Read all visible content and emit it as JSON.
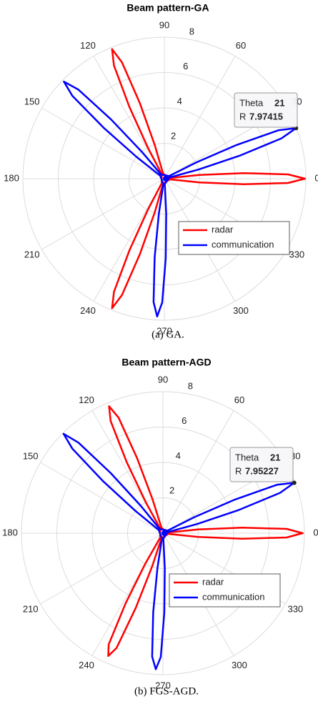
{
  "chart_data": [
    {
      "type": "polar",
      "title": "Beam pattern-GA",
      "caption": "(a) GA.",
      "rlim": [
        0,
        8
      ],
      "rticks": [
        2,
        4,
        6,
        8
      ],
      "thetaticks": [
        0,
        30,
        60,
        90,
        120,
        150,
        180,
        210,
        240,
        270,
        300,
        330
      ],
      "grid": true,
      "legend": "southeast",
      "series": [
        {
          "name": "radar",
          "color": "#ff0000",
          "theta": [
            352,
            354,
            356,
            358,
            0,
            2,
            4,
            6,
            8,
            104,
            106,
            108,
            110,
            112,
            114,
            116,
            118,
            120,
            240,
            242,
            244,
            246,
            248,
            250,
            252,
            254,
            256
          ],
          "values": [
            0.3,
            2,
            4.5,
            7,
            7.95,
            7,
            4.5,
            2,
            0.3,
            0.3,
            2,
            4.5,
            7,
            7.9,
            7,
            4.5,
            2,
            0.3,
            0.3,
            2,
            4.5,
            7,
            7.9,
            7,
            4.5,
            2,
            0.3
          ]
        },
        {
          "name": "communication",
          "color": "#0000ff",
          "theta": [
            13,
            15,
            17,
            19,
            21,
            23,
            25,
            27,
            29,
            128,
            130,
            132,
            134,
            136,
            138,
            140,
            142,
            144,
            259,
            261,
            263,
            265,
            267,
            269,
            271,
            273,
            275
          ],
          "values": [
            0.3,
            2,
            4.5,
            7,
            7.97415,
            7,
            4.5,
            2,
            0.3,
            0.3,
            2,
            4.5,
            7,
            7.9,
            7,
            4.5,
            2,
            0.3,
            0.3,
            2,
            4.5,
            7,
            7.8,
            7,
            4.5,
            2,
            0.3
          ]
        }
      ],
      "datatip": {
        "theta_label": "Theta",
        "theta": 21,
        "r_label": "R",
        "r": 7.97415
      }
    },
    {
      "type": "polar",
      "title": "Beam pattern-AGD",
      "caption": "(b) FGS-AGD.",
      "rlim": [
        0,
        8
      ],
      "rticks": [
        2,
        4,
        6,
        8
      ],
      "thetaticks": [
        0,
        30,
        60,
        90,
        120,
        150,
        180,
        210,
        240,
        270,
        300,
        330
      ],
      "grid": true,
      "legend": "southeast",
      "series": [
        {
          "name": "radar",
          "color": "#ff0000",
          "theta": [
            352,
            354,
            356,
            358,
            0,
            2,
            4,
            6,
            8,
            105,
            107,
            109,
            111,
            113,
            115,
            117,
            119,
            121,
            238,
            240,
            242,
            244,
            246,
            248,
            250,
            252,
            254
          ],
          "values": [
            0.3,
            2,
            4.5,
            7,
            7.9,
            7,
            4.5,
            2,
            0.3,
            0.3,
            2,
            4.5,
            7,
            7.8,
            7,
            4.5,
            2,
            0.3,
            0.3,
            2,
            4.5,
            7,
            7.6,
            7,
            4.5,
            2,
            0.3
          ]
        },
        {
          "name": "communication",
          "color": "#0000ff",
          "theta": [
            13,
            15,
            17,
            19,
            21,
            23,
            25,
            27,
            29,
            127,
            129,
            131,
            133,
            135,
            137,
            139,
            141,
            143,
            259,
            261,
            263,
            265,
            267,
            269,
            271,
            273,
            275
          ],
          "values": [
            0.3,
            2,
            4.5,
            7,
            7.95227,
            7,
            4.5,
            2,
            0.3,
            0.3,
            2,
            4.5,
            7,
            7.95,
            7,
            4.5,
            2,
            0.3,
            0.3,
            2,
            4.5,
            7,
            7.7,
            7,
            4.5,
            2,
            0.3
          ]
        }
      ],
      "datatip": {
        "theta_label": "Theta",
        "theta": 21,
        "r_label": "R",
        "r": 7.95227
      }
    }
  ]
}
